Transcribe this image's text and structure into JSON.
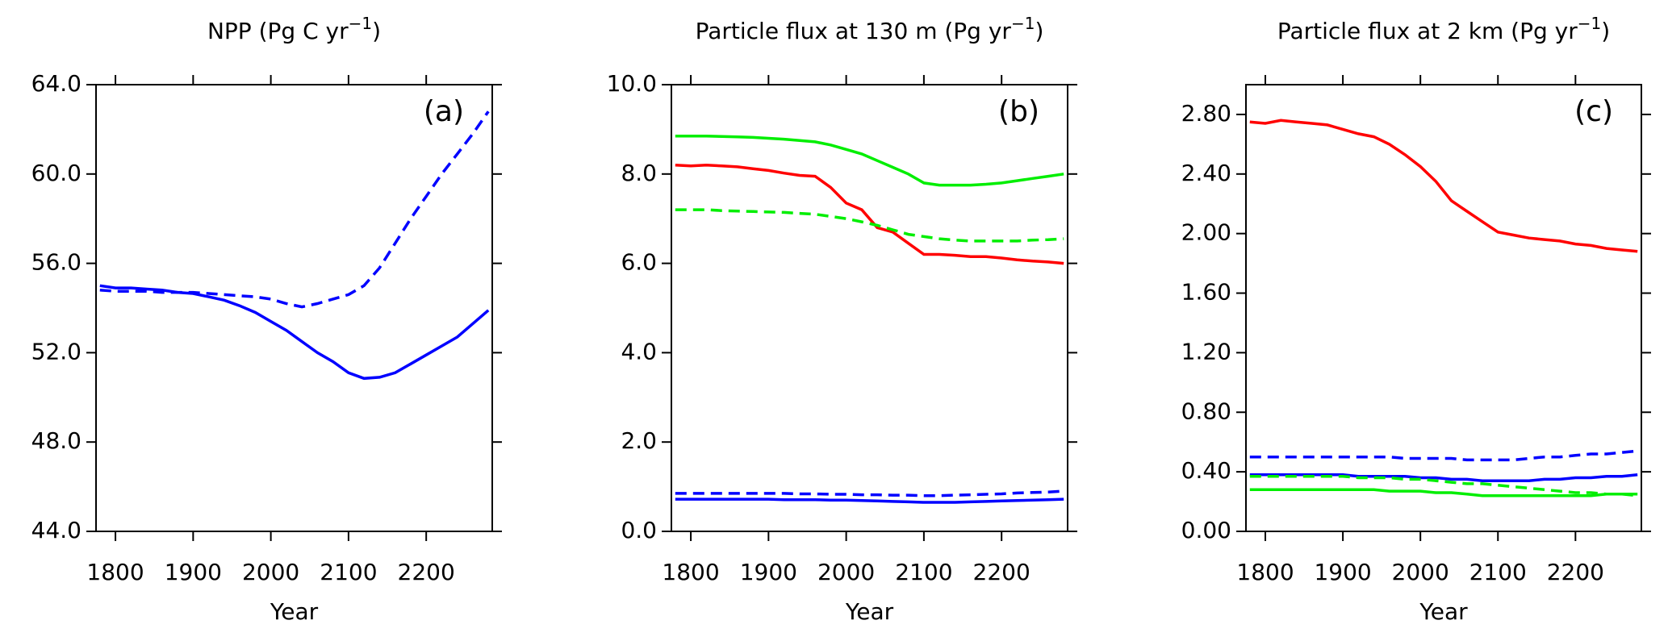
{
  "chart_data": [
    {
      "type": "line",
      "title": {
        "text": "NPP (Pg C yr",
        "sup": "−1",
        "end": ")"
      },
      "annotation": "(a)",
      "xlabel": "Year",
      "x": [
        1780,
        1800,
        1820,
        1840,
        1860,
        1880,
        1900,
        1920,
        1940,
        1960,
        1980,
        2000,
        2020,
        2040,
        2060,
        2080,
        2100,
        2120,
        2140,
        2160,
        2180,
        2200,
        2220,
        2240,
        2260,
        2280
      ],
      "xlim": [
        1775,
        2285
      ],
      "xticks": [
        1800,
        1900,
        2000,
        2100,
        2200
      ],
      "ylim": [
        44,
        64
      ],
      "yticks": [
        {
          "value": 44,
          "label": "44.0"
        },
        {
          "value": 48,
          "label": "48.0"
        },
        {
          "value": 52,
          "label": "52.0"
        },
        {
          "value": 56,
          "label": "56.0"
        },
        {
          "value": 60,
          "label": "60.0"
        },
        {
          "value": 64,
          "label": "64.0"
        }
      ],
      "series": [
        {
          "color": "#0000ff",
          "dash": false,
          "values": [
            55.0,
            54.9,
            54.9,
            54.85,
            54.8,
            54.7,
            54.65,
            54.5,
            54.35,
            54.1,
            53.8,
            53.4,
            53.0,
            52.5,
            52.0,
            51.6,
            51.1,
            50.85,
            50.9,
            51.1,
            51.5,
            51.9,
            52.3,
            52.7,
            53.3,
            53.9
          ]
        },
        {
          "color": "#0000ff",
          "dash": true,
          "values": [
            54.8,
            54.75,
            54.75,
            54.75,
            54.7,
            54.7,
            54.7,
            54.65,
            54.6,
            54.55,
            54.5,
            54.4,
            54.2,
            54.05,
            54.2,
            54.4,
            54.6,
            55.0,
            55.8,
            56.9,
            58.0,
            59.0,
            60.0,
            60.9,
            61.8,
            62.8
          ]
        }
      ]
    },
    {
      "type": "line",
      "title": {
        "text": "Particle flux at 130 m (Pg yr",
        "sup": "−1",
        "end": ")"
      },
      "annotation": "(b)",
      "xlabel": "Year",
      "x": [
        1780,
        1800,
        1820,
        1840,
        1860,
        1880,
        1900,
        1920,
        1940,
        1960,
        1980,
        2000,
        2020,
        2040,
        2060,
        2080,
        2100,
        2120,
        2140,
        2160,
        2180,
        2200,
        2220,
        2240,
        2260,
        2280
      ],
      "xlim": [
        1775,
        2285
      ],
      "xticks": [
        1800,
        1900,
        2000,
        2100,
        2200
      ],
      "ylim": [
        0,
        10
      ],
      "yticks": [
        {
          "value": 0,
          "label": "0.0"
        },
        {
          "value": 2,
          "label": "2.0"
        },
        {
          "value": 4,
          "label": "4.0"
        },
        {
          "value": 6,
          "label": "6.0"
        },
        {
          "value": 8,
          "label": "8.0"
        },
        {
          "value": 10,
          "label": "10.0"
        }
      ],
      "series": [
        {
          "color": "#00ee00",
          "dash": false,
          "values": [
            8.85,
            8.85,
            8.85,
            8.84,
            8.83,
            8.82,
            8.8,
            8.78,
            8.75,
            8.72,
            8.65,
            8.55,
            8.45,
            8.3,
            8.15,
            8.0,
            7.8,
            7.75,
            7.75,
            7.75,
            7.77,
            7.8,
            7.85,
            7.9,
            7.95,
            8.0
          ]
        },
        {
          "color": "#ff0000",
          "dash": false,
          "values": [
            8.2,
            8.18,
            8.2,
            8.18,
            8.16,
            8.12,
            8.08,
            8.02,
            7.97,
            7.95,
            7.7,
            7.35,
            7.2,
            6.8,
            6.7,
            6.45,
            6.2,
            6.2,
            6.18,
            6.15,
            6.15,
            6.12,
            6.08,
            6.05,
            6.03,
            6.0
          ]
        },
        {
          "color": "#00ee00",
          "dash": true,
          "values": [
            7.2,
            7.2,
            7.2,
            7.18,
            7.17,
            7.16,
            7.15,
            7.14,
            7.12,
            7.1,
            7.05,
            7.0,
            6.93,
            6.85,
            6.75,
            6.65,
            6.6,
            6.55,
            6.52,
            6.5,
            6.5,
            6.5,
            6.5,
            6.52,
            6.53,
            6.55
          ]
        },
        {
          "color": "#0000ff",
          "dash": true,
          "values": [
            0.85,
            0.85,
            0.85,
            0.85,
            0.85,
            0.85,
            0.85,
            0.85,
            0.84,
            0.84,
            0.83,
            0.83,
            0.82,
            0.82,
            0.81,
            0.81,
            0.8,
            0.8,
            0.81,
            0.82,
            0.83,
            0.84,
            0.86,
            0.87,
            0.88,
            0.9
          ]
        },
        {
          "color": "#0000ff",
          "dash": false,
          "values": [
            0.72,
            0.72,
            0.72,
            0.72,
            0.72,
            0.72,
            0.72,
            0.71,
            0.71,
            0.71,
            0.7,
            0.7,
            0.69,
            0.68,
            0.67,
            0.66,
            0.65,
            0.65,
            0.65,
            0.66,
            0.67,
            0.68,
            0.69,
            0.7,
            0.71,
            0.72
          ]
        }
      ]
    },
    {
      "type": "line",
      "title": {
        "text": "Particle flux at 2 km (Pg yr",
        "sup": "−1",
        "end": ")"
      },
      "annotation": "(c)",
      "xlabel": "Year",
      "x": [
        1780,
        1800,
        1820,
        1840,
        1860,
        1880,
        1900,
        1920,
        1940,
        1960,
        1980,
        2000,
        2020,
        2040,
        2060,
        2080,
        2100,
        2120,
        2140,
        2160,
        2180,
        2200,
        2220,
        2240,
        2260,
        2280
      ],
      "xlim": [
        1775,
        2285
      ],
      "xticks": [
        1800,
        1900,
        2000,
        2100,
        2200
      ],
      "ylim": [
        0,
        3.0
      ],
      "yticks": [
        {
          "value": 0,
          "label": "0.00"
        },
        {
          "value": 0.4,
          "label": "0.40"
        },
        {
          "value": 0.8,
          "label": "0.80"
        },
        {
          "value": 1.2,
          "label": "1.20"
        },
        {
          "value": 1.6,
          "label": "1.60"
        },
        {
          "value": 2.0,
          "label": "2.00"
        },
        {
          "value": 2.4,
          "label": "2.40"
        },
        {
          "value": 2.8,
          "label": "2.80"
        }
      ],
      "series": [
        {
          "color": "#ff0000",
          "dash": false,
          "values": [
            2.75,
            2.74,
            2.76,
            2.75,
            2.74,
            2.73,
            2.7,
            2.67,
            2.65,
            2.6,
            2.53,
            2.45,
            2.35,
            2.22,
            2.15,
            2.08,
            2.01,
            1.99,
            1.97,
            1.96,
            1.95,
            1.93,
            1.92,
            1.9,
            1.89,
            1.88
          ]
        },
        {
          "color": "#0000ff",
          "dash": true,
          "values": [
            0.5,
            0.5,
            0.5,
            0.5,
            0.5,
            0.5,
            0.5,
            0.5,
            0.5,
            0.5,
            0.49,
            0.49,
            0.49,
            0.49,
            0.48,
            0.48,
            0.48,
            0.48,
            0.49,
            0.5,
            0.5,
            0.51,
            0.52,
            0.52,
            0.53,
            0.54
          ]
        },
        {
          "color": "#0000ff",
          "dash": false,
          "values": [
            0.38,
            0.38,
            0.38,
            0.38,
            0.38,
            0.38,
            0.38,
            0.37,
            0.37,
            0.37,
            0.37,
            0.36,
            0.36,
            0.35,
            0.35,
            0.34,
            0.34,
            0.34,
            0.34,
            0.35,
            0.35,
            0.36,
            0.36,
            0.37,
            0.37,
            0.38
          ]
        },
        {
          "color": "#00ee00",
          "dash": true,
          "values": [
            0.37,
            0.37,
            0.37,
            0.37,
            0.37,
            0.37,
            0.37,
            0.36,
            0.36,
            0.36,
            0.35,
            0.35,
            0.34,
            0.33,
            0.32,
            0.32,
            0.31,
            0.3,
            0.29,
            0.28,
            0.27,
            0.26,
            0.26,
            0.25,
            0.25,
            0.24
          ]
        },
        {
          "color": "#00ee00",
          "dash": false,
          "values": [
            0.28,
            0.28,
            0.28,
            0.28,
            0.28,
            0.28,
            0.28,
            0.28,
            0.28,
            0.27,
            0.27,
            0.27,
            0.26,
            0.26,
            0.25,
            0.24,
            0.24,
            0.24,
            0.24,
            0.24,
            0.24,
            0.24,
            0.24,
            0.25,
            0.25,
            0.25
          ]
        }
      ]
    }
  ]
}
